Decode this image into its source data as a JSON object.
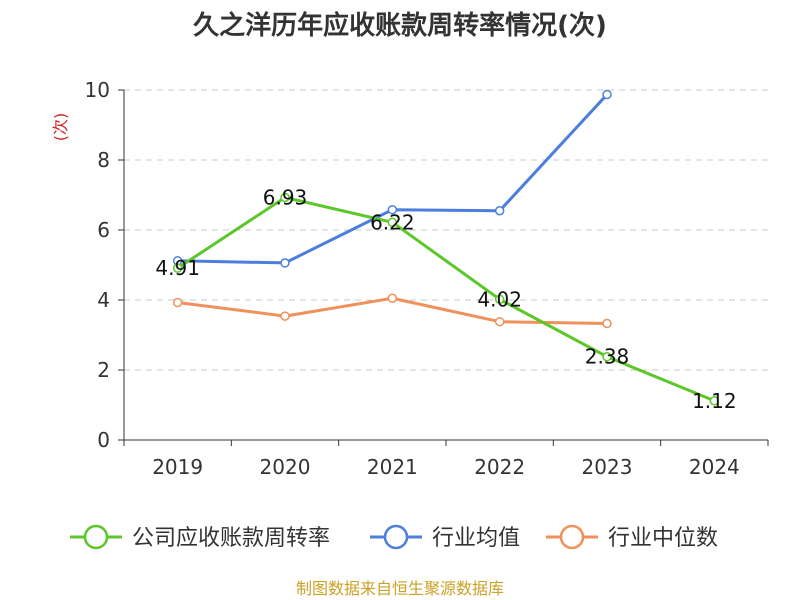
{
  "chart_data": {
    "type": "line",
    "title": "久之洋历年应收账款周转率情况(次)",
    "ylabel": "(次)",
    "xlabel": "",
    "categories": [
      "2019",
      "2020",
      "2021",
      "2022",
      "2023",
      "2024"
    ],
    "ylim": [
      0,
      10
    ],
    "yticks": [
      0,
      2,
      4,
      6,
      8,
      10
    ],
    "grid": true,
    "legend_position": "bottom",
    "series": [
      {
        "name": "公司应收账款周转率",
        "color": "#5cc62a",
        "values": [
          4.91,
          6.93,
          6.22,
          4.02,
          2.38,
          1.12
        ],
        "show_labels": true
      },
      {
        "name": "行业均值",
        "color": "#4c7fdc",
        "values": [
          5.12,
          5.06,
          6.58,
          6.55,
          9.87,
          null
        ],
        "show_labels": false
      },
      {
        "name": "行业中位数",
        "color": "#f0905a",
        "values": [
          3.93,
          3.54,
          4.05,
          3.38,
          3.33,
          null
        ],
        "show_labels": false
      }
    ],
    "source": "制图数据来自恒生聚源数据库"
  }
}
